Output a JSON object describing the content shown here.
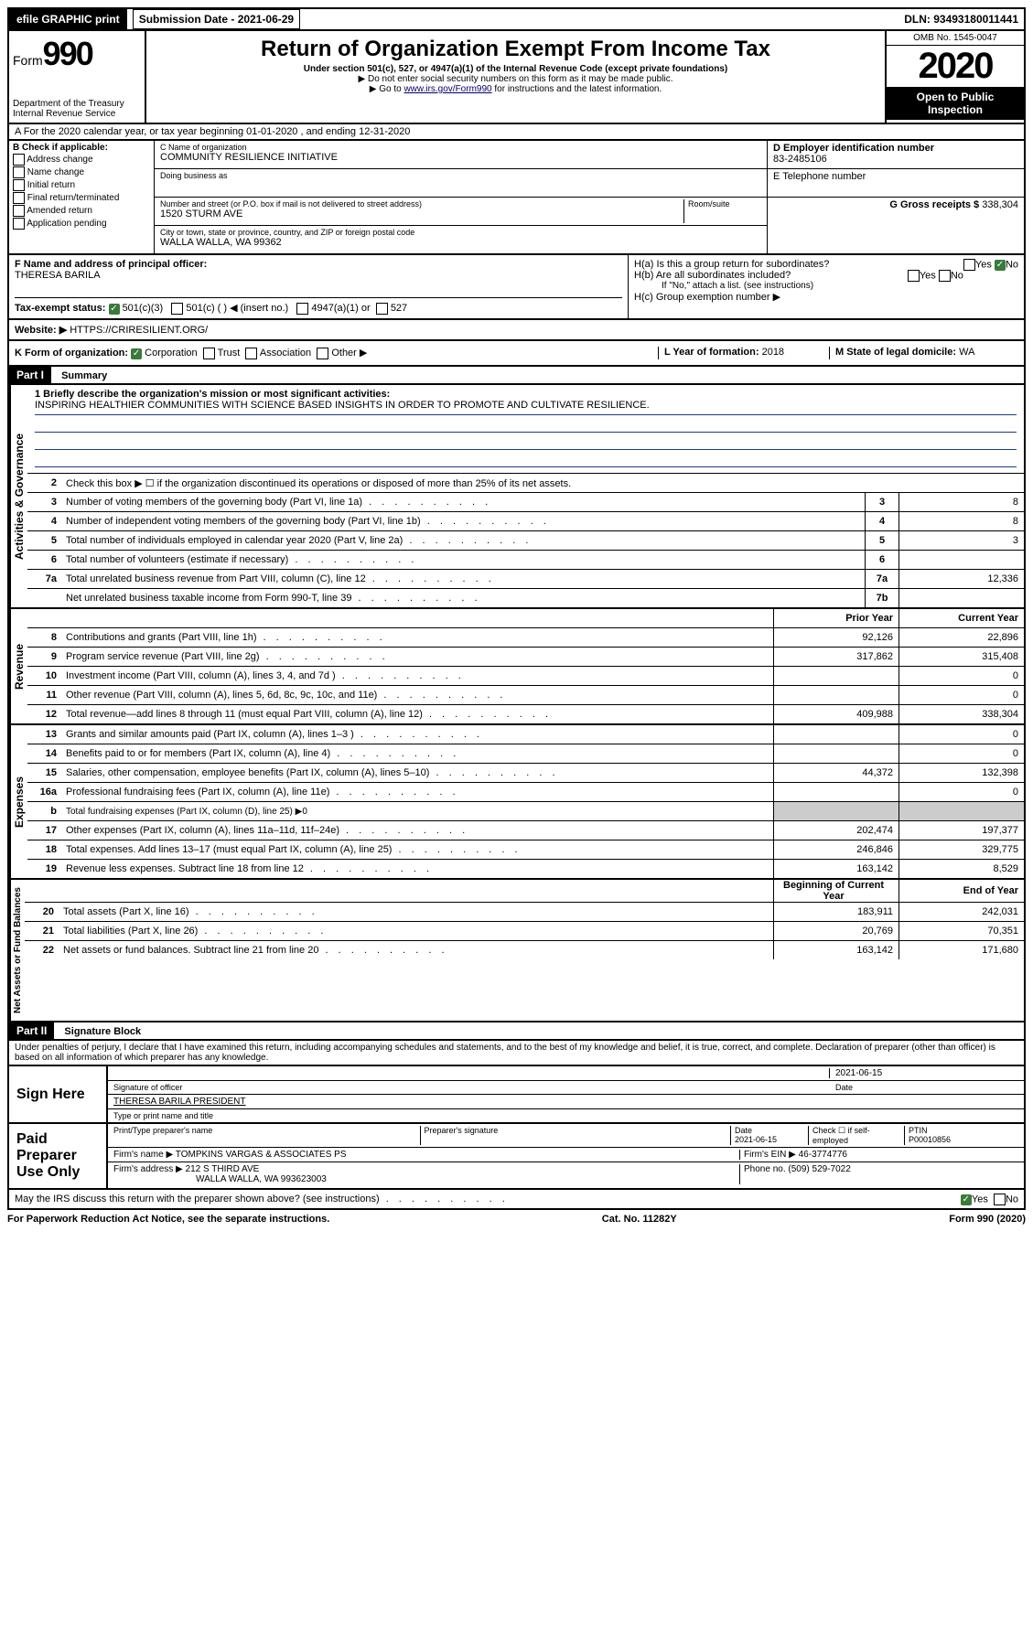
{
  "top": {
    "efile": "efile GRAPHIC print",
    "submission": "Submission Date - 2021-06-29",
    "dln": "DLN: 93493180011441"
  },
  "header": {
    "form_prefix": "Form",
    "form_num": "990",
    "dept": "Department of the Treasury",
    "irs": "Internal Revenue Service",
    "title": "Return of Organization Exempt From Income Tax",
    "subtitle": "Under section 501(c), 527, or 4947(a)(1) of the Internal Revenue Code (except private foundations)",
    "note1": "▶ Do not enter social security numbers on this form as it may be made public.",
    "note2_pre": "▶ Go to ",
    "note2_link": "www.irs.gov/Form990",
    "note2_post": " for instructions and the latest information.",
    "omb": "OMB No. 1545-0047",
    "year": "2020",
    "open": "Open to Public Inspection"
  },
  "rowA": "A For the 2020 calendar year, or tax year beginning 01-01-2020    , and ending 12-31-2020",
  "colB": {
    "label": "B Check if applicable:",
    "opts": [
      "Address change",
      "Name change",
      "Initial return",
      "Final return/terminated",
      "Amended return",
      "Application pending"
    ]
  },
  "colC": {
    "name_label": "C Name of organization",
    "name": "COMMUNITY RESILIENCE INITIATIVE",
    "dba_label": "Doing business as",
    "addr_label": "Number and street (or P.O. box if mail is not delivered to street address)",
    "room_label": "Room/suite",
    "addr": "1520 STURM AVE",
    "city_label": "City or town, state or province, country, and ZIP or foreign postal code",
    "city": "WALLA WALLA, WA  99362"
  },
  "colD": {
    "label": "D Employer identification number",
    "value": "83-2485106"
  },
  "colE": {
    "label": "E Telephone number",
    "value": ""
  },
  "colG": {
    "label": "G Gross receipts $",
    "value": "338,304"
  },
  "rowF": {
    "label": "F  Name and address of principal officer:",
    "value": "THERESA BARILA"
  },
  "rowH": {
    "a_label": "H(a)  Is this a group return for subordinates?",
    "b_label": "H(b)  Are all subordinates included?",
    "b_note": "If \"No,\" attach a list. (see instructions)",
    "c_label": "H(c)  Group exemption number ▶"
  },
  "rowI": {
    "label": "Tax-exempt status:",
    "opt1": "501(c)(3)",
    "opt2": "501(c) (  ) ◀ (insert no.)",
    "opt3": "4947(a)(1) or",
    "opt4": "527"
  },
  "rowJ": {
    "label": "Website: ▶",
    "value": "HTTPS://CRIRESILIENT.ORG/"
  },
  "rowK": {
    "label": "K Form of organization:",
    "opts": [
      "Corporation",
      "Trust",
      "Association",
      "Other ▶"
    ],
    "l_label": "L Year of formation:",
    "l_val": "2018",
    "m_label": "M State of legal domicile:",
    "m_val": "WA"
  },
  "partI": "Part I",
  "partI_title": "Summary",
  "mission": {
    "q": "1  Briefly describe the organization's mission or most significant activities:",
    "text": "INSPIRING HEALTHIER COMMUNITIES WITH SCIENCE BASED INSIGHTS IN ORDER TO PROMOTE AND CULTIVATE RESILIENCE."
  },
  "line2": "Check this box ▶ ☐  if the organization discontinued its operations or disposed of more than 25% of its net assets.",
  "vert": {
    "gov": "Activities & Governance",
    "rev": "Revenue",
    "exp": "Expenses",
    "net": "Net Assets or Fund Balances"
  },
  "gov_lines": [
    {
      "num": "3",
      "text": "Number of voting members of the governing body (Part VI, line 1a)",
      "box": "3",
      "val": "8"
    },
    {
      "num": "4",
      "text": "Number of independent voting members of the governing body (Part VI, line 1b)",
      "box": "4",
      "val": "8"
    },
    {
      "num": "5",
      "text": "Total number of individuals employed in calendar year 2020 (Part V, line 2a)",
      "box": "5",
      "val": "3"
    },
    {
      "num": "6",
      "text": "Total number of volunteers (estimate if necessary)",
      "box": "6",
      "val": ""
    },
    {
      "num": "7a",
      "text": "Total unrelated business revenue from Part VIII, column (C), line 12",
      "box": "7a",
      "val": "12,336"
    },
    {
      "num": "",
      "text": "Net unrelated business taxable income from Form 990-T, line 39",
      "box": "7b",
      "val": ""
    }
  ],
  "col_headers": {
    "prior": "Prior Year",
    "current": "Current Year",
    "begin": "Beginning of Current Year",
    "end": "End of Year"
  },
  "rev_lines": [
    {
      "num": "8",
      "text": "Contributions and grants (Part VIII, line 1h)",
      "p": "92,126",
      "c": "22,896"
    },
    {
      "num": "9",
      "text": "Program service revenue (Part VIII, line 2g)",
      "p": "317,862",
      "c": "315,408"
    },
    {
      "num": "10",
      "text": "Investment income (Part VIII, column (A), lines 3, 4, and 7d )",
      "p": "",
      "c": "0"
    },
    {
      "num": "11",
      "text": "Other revenue (Part VIII, column (A), lines 5, 6d, 8c, 9c, 10c, and 11e)",
      "p": "",
      "c": "0"
    },
    {
      "num": "12",
      "text": "Total revenue—add lines 8 through 11 (must equal Part VIII, column (A), line 12)",
      "p": "409,988",
      "c": "338,304"
    }
  ],
  "exp_lines": [
    {
      "num": "13",
      "text": "Grants and similar amounts paid (Part IX, column (A), lines 1–3 )",
      "p": "",
      "c": "0"
    },
    {
      "num": "14",
      "text": "Benefits paid to or for members (Part IX, column (A), line 4)",
      "p": "",
      "c": "0"
    },
    {
      "num": "15",
      "text": "Salaries, other compensation, employee benefits (Part IX, column (A), lines 5–10)",
      "p": "44,372",
      "c": "132,398"
    },
    {
      "num": "16a",
      "text": "Professional fundraising fees (Part IX, column (A), line 11e)",
      "p": "",
      "c": "0"
    },
    {
      "num": "b",
      "text": "Total fundraising expenses (Part IX, column (D), line 25) ▶0",
      "p": "—",
      "c": "—"
    },
    {
      "num": "17",
      "text": "Other expenses (Part IX, column (A), lines 11a–11d, 11f–24e)",
      "p": "202,474",
      "c": "197,377"
    },
    {
      "num": "18",
      "text": "Total expenses. Add lines 13–17 (must equal Part IX, column (A), line 25)",
      "p": "246,846",
      "c": "329,775"
    },
    {
      "num": "19",
      "text": "Revenue less expenses. Subtract line 18 from line 12",
      "p": "163,142",
      "c": "8,529"
    }
  ],
  "net_lines": [
    {
      "num": "20",
      "text": "Total assets (Part X, line 16)",
      "p": "183,911",
      "c": "242,031"
    },
    {
      "num": "21",
      "text": "Total liabilities (Part X, line 26)",
      "p": "20,769",
      "c": "70,351"
    },
    {
      "num": "22",
      "text": "Net assets or fund balances. Subtract line 21 from line 20",
      "p": "163,142",
      "c": "171,680"
    }
  ],
  "partII": "Part II",
  "partII_title": "Signature Block",
  "perjury": "Under penalties of perjury, I declare that I have examined this return, including accompanying schedules and statements, and to the best of my knowledge and belief, it is true, correct, and complete. Declaration of preparer (other than officer) is based on all information of which preparer has any knowledge.",
  "sign": {
    "here": "Sign Here",
    "sig_label": "Signature of officer",
    "date": "2021-06-15",
    "date_label": "Date",
    "name": "THERESA BARILA  PRESIDENT",
    "name_label": "Type or print name and title"
  },
  "paid": {
    "label": "Paid Preparer Use Only",
    "h1": "Print/Type preparer's name",
    "h2": "Preparer's signature",
    "h3": "Date",
    "h3v": "2021-06-15",
    "h4": "Check ☐ if self-employed",
    "h5": "PTIN",
    "h5v": "P00010856",
    "firm_label": "Firm's name    ▶",
    "firm": "TOMPKINS VARGAS & ASSOCIATES PS",
    "ein_label": "Firm's EIN ▶",
    "ein": "46-3774776",
    "addr_label": "Firm's address ▶",
    "addr": "212 S THIRD AVE",
    "addr2": "WALLA WALLA, WA  993623003",
    "phone_label": "Phone no.",
    "phone": "(509) 529-7022"
  },
  "discuss": "May the IRS discuss this return with the preparer shown above? (see instructions)",
  "footer": {
    "left": "For Paperwork Reduction Act Notice, see the separate instructions.",
    "mid": "Cat. No. 11282Y",
    "right": "Form 990 (2020)"
  },
  "colors": {
    "link": "#003399",
    "green_check": "#3a7a3a"
  }
}
